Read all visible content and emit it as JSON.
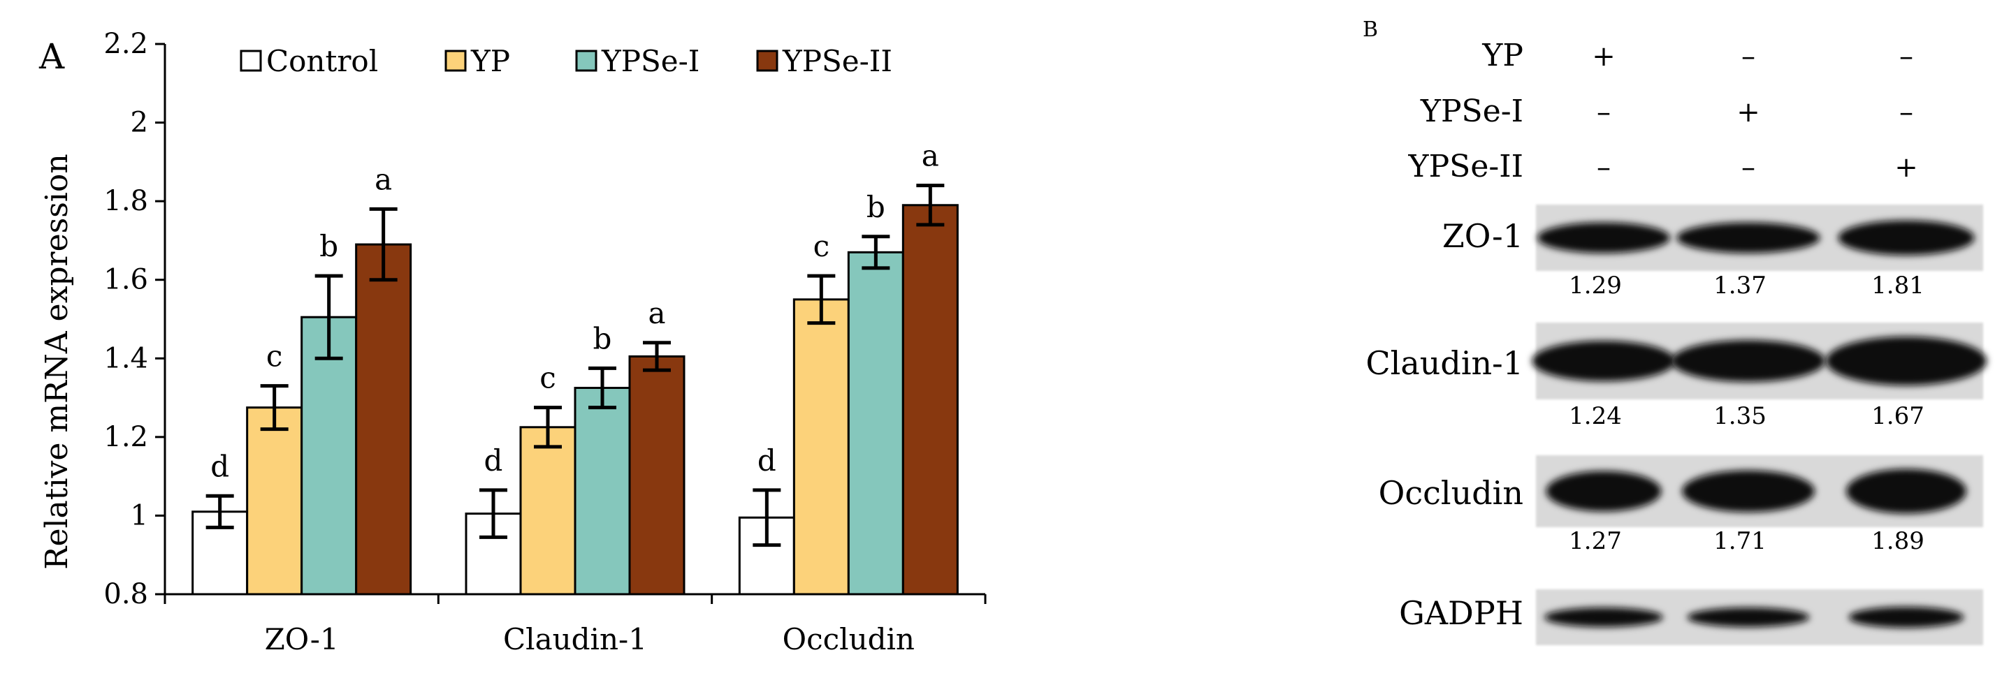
{
  "panel_a": {
    "label": "A",
    "chart_data": {
      "type": "bar",
      "title": "",
      "xlabel": "",
      "ylabel": "Relative mRNA expression",
      "ylim": [
        0.8,
        2.2
      ],
      "yticks": [
        "0.8",
        "1",
        "1.2",
        "1.4",
        "1.6",
        "1.8",
        "2",
        "2.2"
      ],
      "categories": [
        "ZO-1",
        "Claudin-1",
        "Occludin"
      ],
      "legend_position": "top",
      "series": [
        {
          "name": "Control",
          "color": "#ffffff",
          "values": [
            1.01,
            1.005,
            0.995
          ],
          "errors": [
            0.04,
            0.06,
            0.07
          ],
          "letters": [
            "d",
            "d",
            "d"
          ]
        },
        {
          "name": "YP",
          "color": "#fcd27a",
          "values": [
            1.275,
            1.225,
            1.55
          ],
          "errors": [
            0.055,
            0.05,
            0.06
          ],
          "letters": [
            "c",
            "c",
            "c"
          ]
        },
        {
          "name": "YPSe-I",
          "color": "#85c7bc",
          "values": [
            1.505,
            1.325,
            1.67
          ],
          "errors": [
            0.105,
            0.05,
            0.04
          ],
          "letters": [
            "b",
            "b",
            "b"
          ]
        },
        {
          "name": "YPSe-II",
          "color": "#88380f",
          "values": [
            1.69,
            1.405,
            1.79
          ],
          "errors": [
            0.09,
            0.035,
            0.05
          ],
          "letters": [
            "a",
            "a",
            "a"
          ]
        }
      ]
    }
  },
  "panel_b": {
    "label": "B",
    "treatments": [
      {
        "name": "YP",
        "signs": [
          "+",
          "–",
          "–"
        ]
      },
      {
        "name": "YPSe-I",
        "signs": [
          "–",
          "+",
          "–"
        ]
      },
      {
        "name": "YPSe-II",
        "signs": [
          "–",
          "–",
          "+"
        ]
      }
    ],
    "blots": [
      {
        "protein": "ZO-1",
        "values": [
          "1.29",
          "1.37",
          "1.81"
        ]
      },
      {
        "protein": "Claudin-1",
        "values": [
          "1.24",
          "1.35",
          "1.67"
        ]
      },
      {
        "protein": "Occludin",
        "values": [
          "1.27",
          "1.71",
          "1.89"
        ]
      },
      {
        "protein": "GADPH",
        "values": []
      }
    ]
  }
}
